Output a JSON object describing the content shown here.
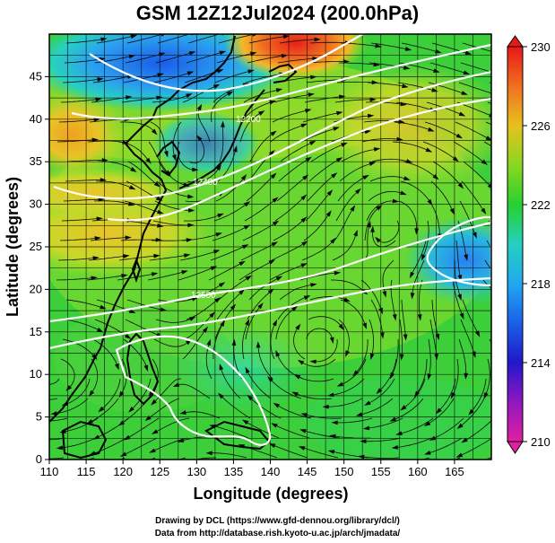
{
  "title": "GSM 12Z12Jul2024 (200.0hPa)",
  "axes": {
    "x_label": "Longitude (degrees)",
    "y_label": "Latitude  (degrees)",
    "x_ticks": [
      "110",
      "115",
      "120",
      "125",
      "130",
      "135",
      "140",
      "145",
      "150",
      "155",
      "160",
      "165"
    ],
    "y_ticks": [
      "0",
      "5",
      "10",
      "15",
      "20",
      "25",
      "30",
      "35",
      "40",
      "45"
    ],
    "x_range": [
      110,
      170
    ],
    "y_range": [
      0,
      50
    ]
  },
  "colorbar": {
    "labels": [
      "230",
      "226",
      "222",
      "218",
      "214",
      "210"
    ],
    "range": [
      210,
      230
    ],
    "colors": [
      "#e0208c",
      "#3010c0",
      "#1e7ff0",
      "#20c8c8",
      "#28d030",
      "#9ae020",
      "#f0c020",
      "#f07020",
      "#e02020"
    ]
  },
  "contour_labels": [
    "12200",
    "12400",
    "12500"
  ],
  "credits": {
    "line1": "Drawing by DCL (https://www.gfd-dennou.org/library/dcl/)",
    "line2": "Data from http://database.rish.kyoto-u.ac.jp/arch/jmadata/"
  }
}
